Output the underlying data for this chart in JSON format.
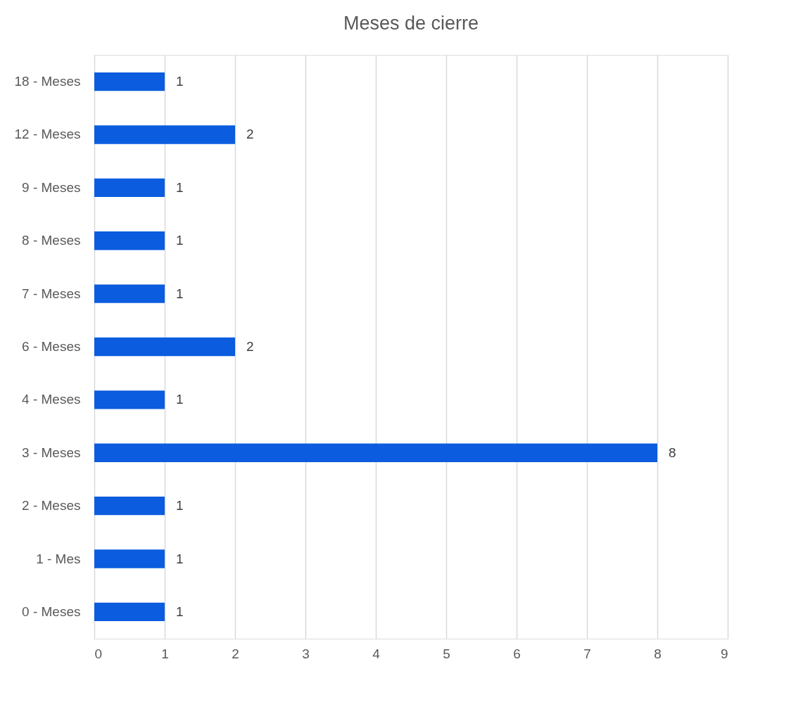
{
  "chart_data": {
    "type": "bar",
    "orientation": "horizontal",
    "title": "Meses de cierre",
    "categories": [
      "18 - Meses",
      "12 - Meses",
      "9 - Meses",
      "8 - Meses",
      "7 - Meses",
      "6 - Meses",
      "4 - Meses",
      "3 - Meses",
      "2 - Meses",
      "1 - Mes",
      "0 - Meses"
    ],
    "values": [
      1,
      2,
      1,
      1,
      1,
      2,
      1,
      8,
      1,
      1,
      1
    ],
    "color": "#0b5cde",
    "xlim": [
      0,
      9
    ],
    "xticks": [
      0,
      1,
      2,
      3,
      4,
      5,
      6,
      7,
      8,
      9
    ],
    "grid": "x",
    "data_labels": true
  }
}
